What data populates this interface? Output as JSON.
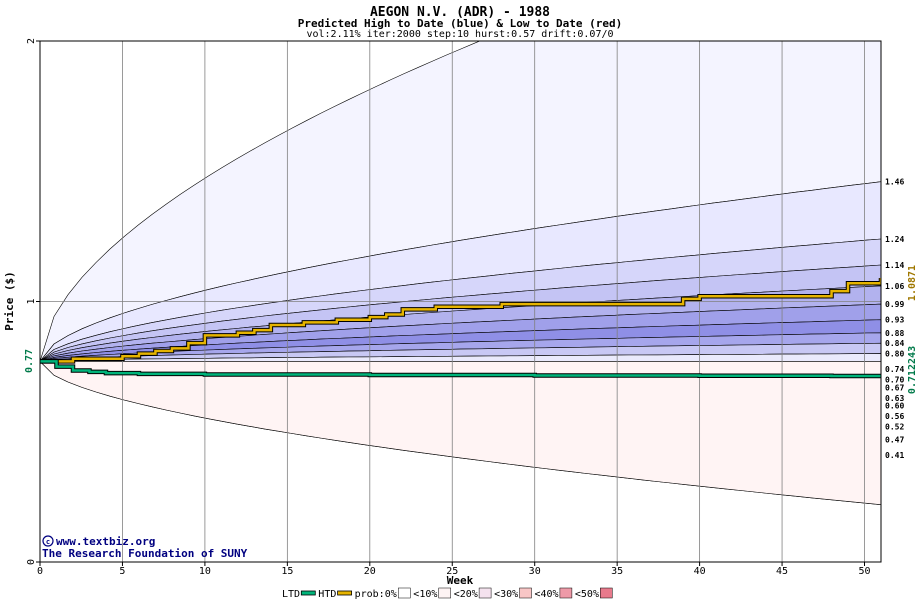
{
  "chart_data": {
    "type": "area",
    "title": "AEGON N.V. (ADR) - 1988",
    "subtitle": "Predicted High to Date (blue) &  Low to Date (red)",
    "params": "vol:2.11% iter:2000 step:10 hurst:0.57 drift:0.07/0",
    "xlabel": "Week",
    "ylabel": "Price ($)",
    "xlim": [
      0,
      51
    ],
    "ylim": [
      0,
      2
    ],
    "x_ticks": [
      0,
      5,
      10,
      15,
      20,
      25,
      30,
      35,
      40,
      45,
      50
    ],
    "y_ticks": [
      0,
      1,
      2
    ],
    "grid": true,
    "start_price": 0.77,
    "start_label": "0.77",
    "credit_lines": [
      "www.textbiz.org",
      "The Research Foundation of SUNY"
    ],
    "percentile_labels": [
      {
        "value": 1.46,
        "text": "1.46"
      },
      {
        "value": 1.24,
        "text": "1.24"
      },
      {
        "value": 1.14,
        "text": "1.14"
      },
      {
        "value": 1.06,
        "text": "1.06"
      },
      {
        "value": 0.99,
        "text": "0.99"
      },
      {
        "value": 0.93,
        "text": "0.93"
      },
      {
        "value": 0.88,
        "text": "0.88"
      },
      {
        "value": 0.84,
        "text": "0.84"
      },
      {
        "value": 0.8,
        "text": "0.80"
      },
      {
        "value": 0.74,
        "text": "0.74"
      },
      {
        "value": 0.7,
        "text": "0.70"
      },
      {
        "value": 0.67,
        "text": "0.67"
      },
      {
        "value": 0.63,
        "text": "0.63"
      },
      {
        "value": 0.6,
        "text": "0.60"
      },
      {
        "value": 0.56,
        "text": "0.56"
      },
      {
        "value": 0.52,
        "text": "0.52"
      },
      {
        "value": 0.47,
        "text": "0.47"
      },
      {
        "value": 0.41,
        "text": "0.41"
      }
    ],
    "high_bands": [
      {
        "end": 2.55,
        "fill": "#f4f4ff"
      },
      {
        "end": 1.46,
        "fill": "#e8e8ff"
      },
      {
        "end": 1.24,
        "fill": "#d6d6fa"
      },
      {
        "end": 1.14,
        "fill": "#c4c4f4"
      },
      {
        "end": 1.06,
        "fill": "#b2b2ee"
      },
      {
        "end": 0.99,
        "fill": "#a0a0ea"
      },
      {
        "end": 0.93,
        "fill": "#8f8fe6"
      },
      {
        "end": 0.88,
        "fill": "#a6a6ec"
      },
      {
        "end": 0.84,
        "fill": "#c8c8f4"
      },
      {
        "end": 0.8,
        "fill": "#eaeafc"
      }
    ],
    "low_bands": [
      {
        "end": 0.7,
        "fill": "#ffe8e8"
      },
      {
        "end": 0.67,
        "fill": "#fbd0d0"
      },
      {
        "end": 0.63,
        "fill": "#f6b4b4"
      },
      {
        "end": 0.6,
        "fill": "#f09a9a"
      },
      {
        "end": 0.56,
        "fill": "#ee8a8a"
      },
      {
        "end": 0.52,
        "fill": "#f6b0b0"
      },
      {
        "end": 0.47,
        "fill": "#fbd0d0"
      },
      {
        "end": 0.41,
        "fill": "#ffe4e4"
      },
      {
        "end": 0.22,
        "fill": "#fff4f4"
      }
    ],
    "series": [
      {
        "name": "HTD",
        "color": "#e6b400",
        "end_label": "1.0871",
        "x": [
          0,
          2,
          5,
          6,
          7,
          8,
          9,
          10,
          12,
          13,
          14,
          16,
          18,
          20,
          21,
          22,
          24,
          26,
          28,
          35,
          39,
          40,
          42,
          45,
          48,
          49,
          51
        ],
        "y": [
          0.77,
          0.78,
          0.79,
          0.8,
          0.81,
          0.82,
          0.84,
          0.87,
          0.88,
          0.89,
          0.91,
          0.92,
          0.93,
          0.94,
          0.95,
          0.97,
          0.98,
          0.98,
          0.99,
          0.99,
          1.01,
          1.02,
          1.02,
          1.02,
          1.04,
          1.07,
          1.09
        ]
      },
      {
        "name": "LTD",
        "color": "#00b47a",
        "end_label": "0.712243",
        "x": [
          0,
          1,
          2,
          3,
          4,
          6,
          10,
          20,
          30,
          40,
          48,
          51
        ],
        "y": [
          0.77,
          0.75,
          0.735,
          0.73,
          0.725,
          0.722,
          0.72,
          0.718,
          0.716,
          0.715,
          0.714,
          0.712
        ]
      }
    ],
    "legend": {
      "placement": "bottom",
      "items": [
        {
          "label": "LTD",
          "kind": "line",
          "color": "#00b47a"
        },
        {
          "label": "HTD",
          "kind": "line",
          "color": "#e6b400"
        },
        {
          "label": "prob:0%",
          "kind": "swatch",
          "color": "#ffffff"
        },
        {
          "label": "<10%",
          "kind": "swatch",
          "color": "#fdf3f3"
        },
        {
          "label": "<20%",
          "kind": "swatch",
          "color": "#f4e2ee"
        },
        {
          "label": "<30%",
          "kind": "swatch",
          "color": "#f8c6c6"
        },
        {
          "label": "<40%",
          "kind": "swatch",
          "color": "#ee9aa8"
        },
        {
          "label": "<50%",
          "kind": "swatch",
          "color": "#e87a8c"
        }
      ]
    }
  }
}
